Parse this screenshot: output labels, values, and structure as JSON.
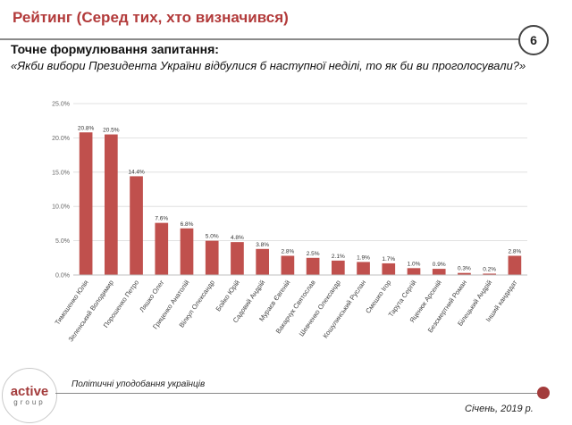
{
  "header": {
    "title": "Рейтинг (Серед тих, хто визначився)",
    "page_number": "6"
  },
  "question": {
    "heading": "Точне формулювання запитання:",
    "text": "«Якби вибори Президента України відбулися б наступної неділі, то як би ви проголосували?»"
  },
  "chart_data": {
    "type": "bar",
    "categories": [
      "Тимошенко Юлія",
      "Зеленський Володимир",
      "Порошенко Петро",
      "Ляшко Олег",
      "Гриценко Анатолій",
      "Вілкул Олександр",
      "Бойко Юрій",
      "Садовий Андрій",
      "Мураєв Євгеній",
      "Вакарчук Святослав",
      "Шевченко Олександр",
      "Кошулинський Руслан",
      "Смешко Ігор",
      "Тарута Сергій",
      "Яценюк Арсеній",
      "Безсмертний Роман",
      "Білецький Андрій",
      "Інший кандидат"
    ],
    "values": [
      20.8,
      20.5,
      14.4,
      7.6,
      6.8,
      5.0,
      4.8,
      3.8,
      2.8,
      2.5,
      2.1,
      1.9,
      1.7,
      1.0,
      0.9,
      0.3,
      0.2,
      2.8
    ],
    "data_labels": [
      "20.8%",
      "20.5%",
      "14.4%",
      "7.6%",
      "6.8%",
      "5.0%",
      "4.8%",
      "3.8%",
      "2.8%",
      "2.5%",
      "2.1%",
      "1.9%",
      "1.7%",
      "1.0%",
      "0.9%",
      "0.3%",
      "0.2%",
      "2.8%"
    ],
    "y_ticks": [
      "0.0%",
      "5.0%",
      "10.0%",
      "15.0%",
      "20.0%",
      "25.0%"
    ],
    "ylim": [
      0,
      25
    ],
    "grid": true,
    "bar_color": "#c0504d",
    "title": "",
    "xlabel": "",
    "ylabel": ""
  },
  "footer": {
    "logo_main": "active",
    "logo_sub": "group",
    "caption": "Політичні уподобання українців",
    "date": "Січень, 2019 р."
  },
  "colors": {
    "accent": "#b23a3a",
    "bar": "#c0504d"
  }
}
